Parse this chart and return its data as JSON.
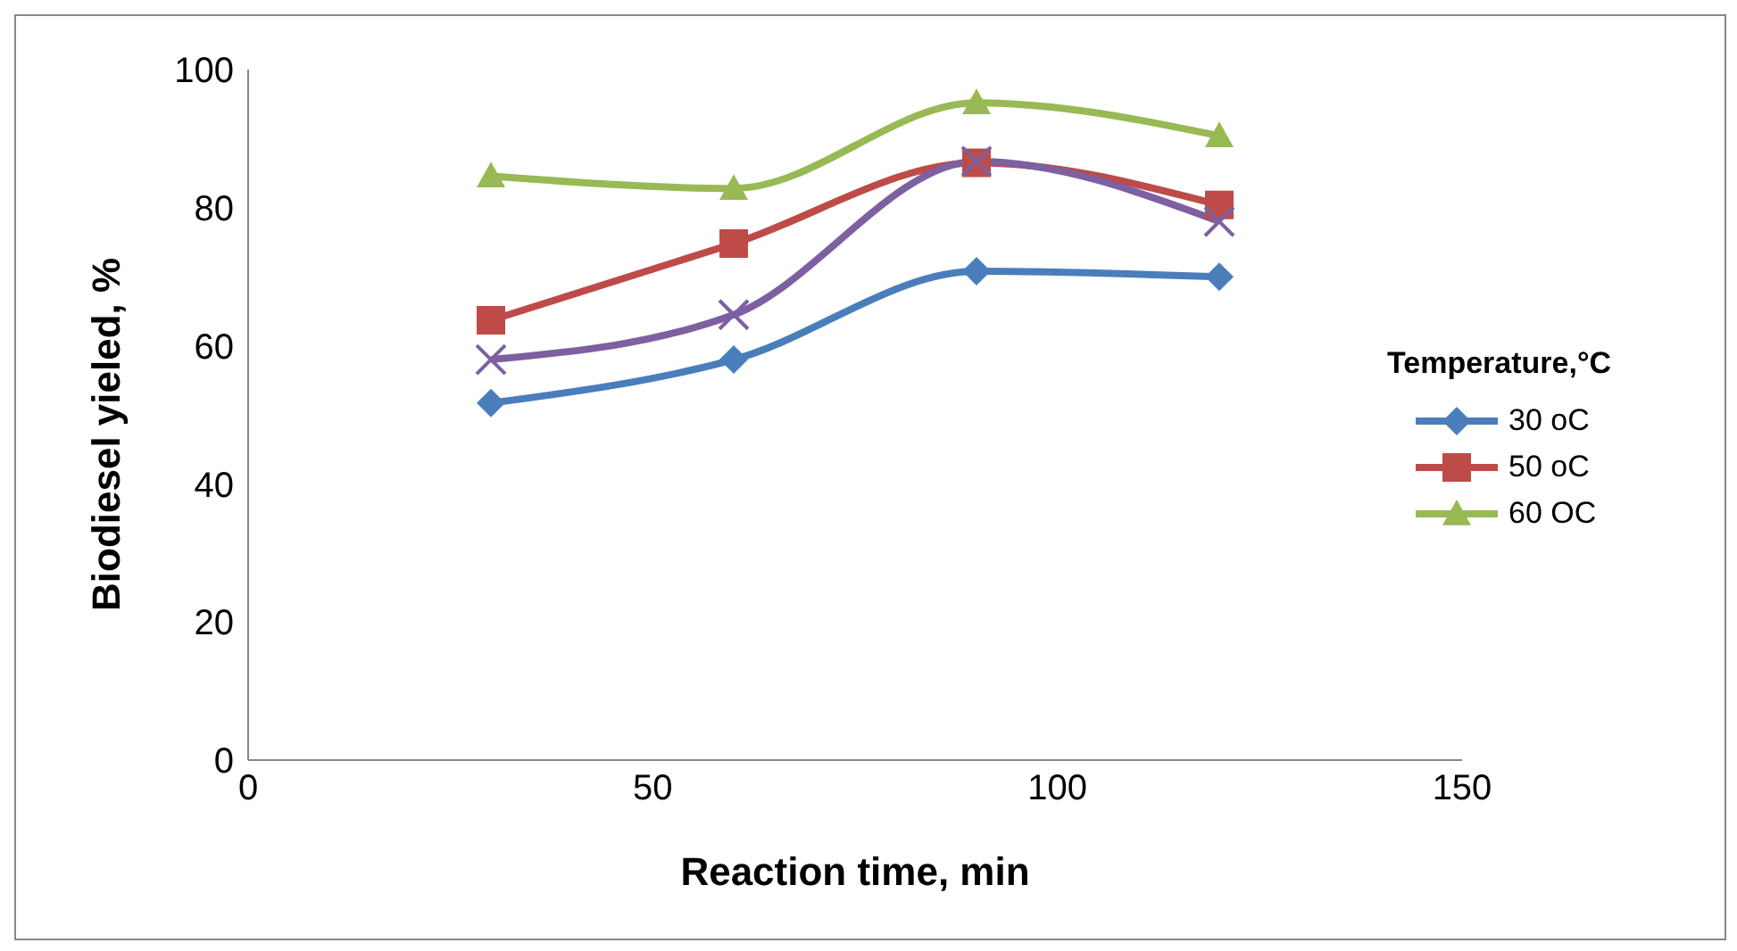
{
  "chart_data": {
    "type": "line",
    "xlabel": "Reaction time, min",
    "ylabel": "Biodiesel yieled, %",
    "legend_title": "Temperature,°C",
    "x": [
      30,
      60,
      90,
      120
    ],
    "series": [
      {
        "name": "30 oC",
        "color": "#4a7ebb",
        "values": [
          51.7,
          58,
          70.8,
          70
        ],
        "marker": "diamond"
      },
      {
        "name": "50 oC",
        "color": "#be4b48",
        "values": [
          63.7,
          74.8,
          86.5,
          80.4
        ],
        "marker": "square"
      },
      {
        "name": "60 OC",
        "color": "#98b954",
        "values": [
          84.6,
          82.8,
          95.2,
          90.4
        ],
        "marker": "triangle"
      },
      {
        "color": "#7d60a0",
        "values": [
          58,
          64.5,
          86.7,
          78
        ],
        "marker": "cross"
      }
    ],
    "xlim": [
      0,
      150
    ],
    "xticks": [
      0,
      50,
      100,
      150
    ],
    "ylim": [
      0,
      100
    ],
    "yticks": [
      0,
      20,
      40,
      60,
      80,
      100
    ],
    "grid": false,
    "legend": "right",
    "line_style": "solid"
  }
}
